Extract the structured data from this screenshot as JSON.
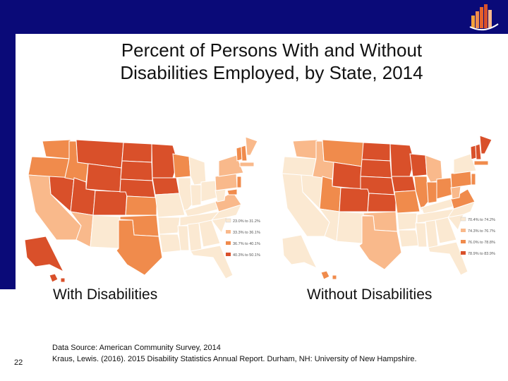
{
  "slide": {
    "title_line1": "Percent of Persons With and Without",
    "title_line2": "Disabilities Employed, by State, 2014",
    "page_number": "22"
  },
  "maps": {
    "left": {
      "caption": "With Disabilities",
      "legend": [
        "23.0% to 31.2%",
        "33.3% to 36.1%",
        "36.7% to 40.1%",
        "40.3% to 50.1%"
      ],
      "colors": [
        "#fbe9d2",
        "#f9b98b",
        "#f08b4c",
        "#d9502a"
      ]
    },
    "right": {
      "caption": "Without Disabilities",
      "legend": [
        "70.4% to 74.2%",
        "74.3% to 76.7%",
        "76.0% to 78.8%",
        "78.9% to 83.9%"
      ],
      "colors": [
        "#fbe9d2",
        "#f9b98b",
        "#f08b4c",
        "#d9502a"
      ]
    }
  },
  "source": {
    "line1": "Data Source: American Community Survey, 2014",
    "line2": "Kraus, Lewis. (2016). 2015 Disability Statistics Annual Report. Durham, NH: University of New Hampshire."
  },
  "brand_colors": {
    "navy": "#0a0a78"
  }
}
